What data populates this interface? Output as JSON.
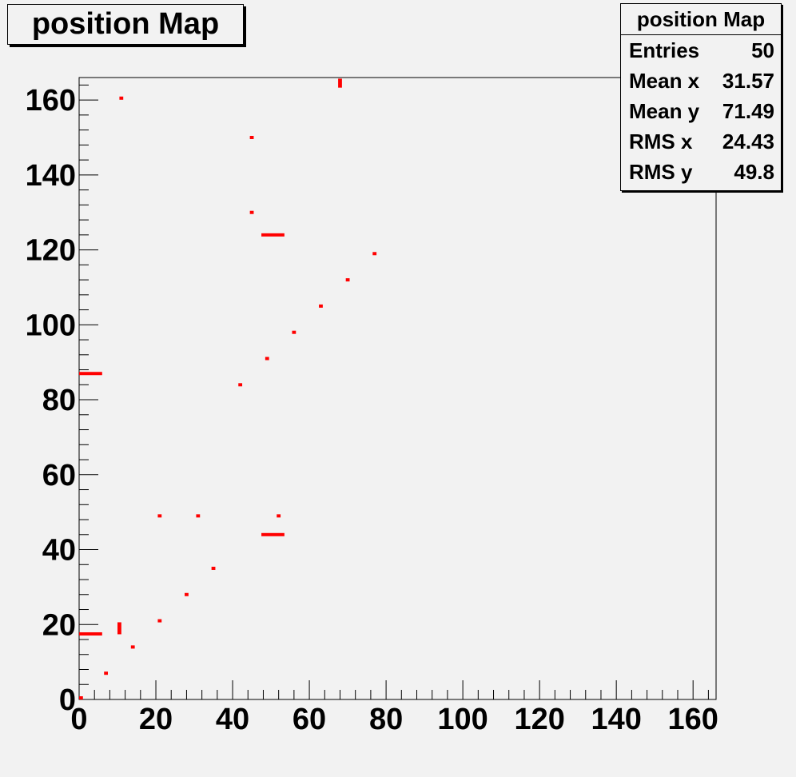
{
  "chart_data": {
    "type": "heatmap",
    "title": "position Map",
    "xlim": [
      0,
      166
    ],
    "ylim": [
      0,
      166
    ],
    "x_ticks": [
      0,
      20,
      40,
      60,
      80,
      100,
      120,
      140,
      160
    ],
    "y_ticks": [
      0,
      20,
      40,
      60,
      80,
      100,
      120,
      140,
      160
    ],
    "point_color": "#ff0000",
    "points": [
      {
        "x": 0,
        "y": 0,
        "w": 1,
        "h": 1
      },
      {
        "x": 0,
        "y": 17.5,
        "w": 6,
        "h": 1
      },
      {
        "x": 0,
        "y": 87,
        "w": 6,
        "h": 1
      },
      {
        "x": 7,
        "y": 7,
        "w": 1,
        "h": 1
      },
      {
        "x": 10.5,
        "y": 19,
        "w": 1,
        "h": 4
      },
      {
        "x": 11,
        "y": 160.5,
        "w": 1,
        "h": 1
      },
      {
        "x": 14,
        "y": 14,
        "w": 1,
        "h": 1
      },
      {
        "x": 21,
        "y": 21,
        "w": 1,
        "h": 1
      },
      {
        "x": 21,
        "y": 49,
        "w": 1,
        "h": 1
      },
      {
        "x": 28,
        "y": 28,
        "w": 1,
        "h": 1
      },
      {
        "x": 31,
        "y": 49,
        "w": 1,
        "h": 1
      },
      {
        "x": 35,
        "y": 35,
        "w": 1,
        "h": 1
      },
      {
        "x": 42,
        "y": 84,
        "w": 1,
        "h": 1
      },
      {
        "x": 45,
        "y": 130,
        "w": 1,
        "h": 1
      },
      {
        "x": 45,
        "y": 150,
        "w": 1,
        "h": 1
      },
      {
        "x": 50.5,
        "y": 44,
        "w": 6,
        "h": 1
      },
      {
        "x": 50.5,
        "y": 124,
        "w": 6,
        "h": 1
      },
      {
        "x": 49,
        "y": 91,
        "w": 1,
        "h": 1
      },
      {
        "x": 52,
        "y": 49,
        "w": 1,
        "h": 1
      },
      {
        "x": 56,
        "y": 98,
        "w": 1,
        "h": 1
      },
      {
        "x": 63,
        "y": 105,
        "w": 1,
        "h": 1
      },
      {
        "x": 68,
        "y": 164.5,
        "w": 1,
        "h": 3
      },
      {
        "x": 70,
        "y": 112,
        "w": 1,
        "h": 1
      },
      {
        "x": 77,
        "y": 119,
        "w": 1,
        "h": 1
      }
    ]
  },
  "stats": {
    "title": "position Map",
    "rows": [
      {
        "label": "Entries",
        "value": "50"
      },
      {
        "label": "Mean x",
        "value": "31.57"
      },
      {
        "label": "Mean y",
        "value": "71.49"
      },
      {
        "label": "RMS x",
        "value": "24.43"
      },
      {
        "label": "RMS y",
        "value": "49.8"
      }
    ]
  }
}
